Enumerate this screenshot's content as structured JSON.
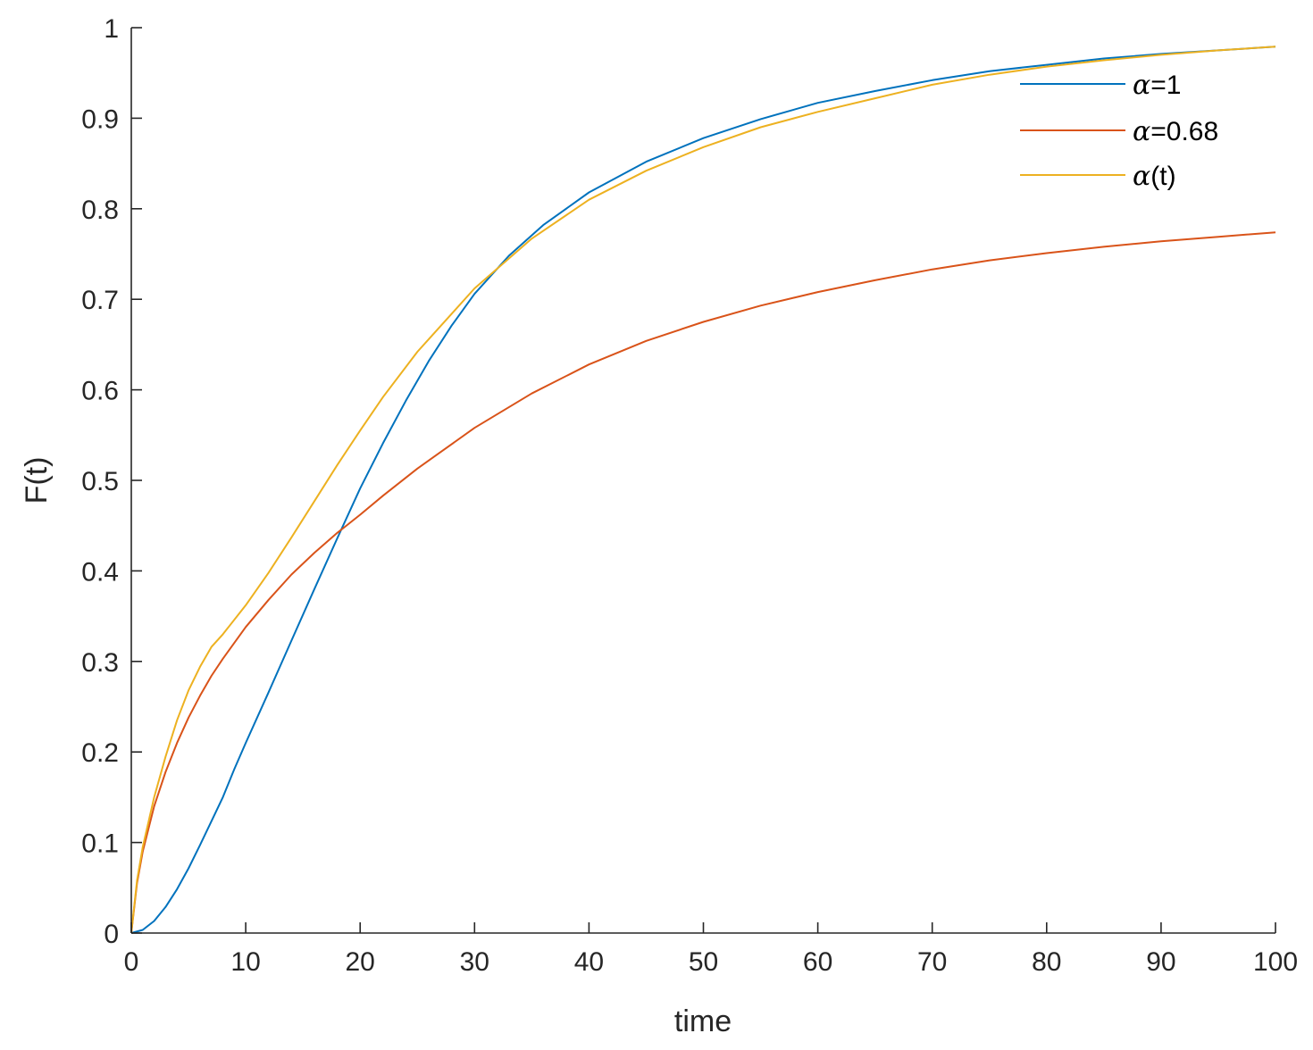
{
  "chart_data": {
    "type": "line",
    "xlabel": "time",
    "ylabel": "F(t)",
    "xlim": [
      0,
      100
    ],
    "ylim": [
      0,
      1
    ],
    "xticks": [
      0,
      10,
      20,
      30,
      40,
      50,
      60,
      70,
      80,
      90,
      100
    ],
    "yticks": [
      0,
      0.1,
      0.2,
      0.3,
      0.4,
      0.5,
      0.6,
      0.7,
      0.8,
      0.9,
      1
    ],
    "xtick_labels": [
      "0",
      "10",
      "20",
      "30",
      "40",
      "50",
      "60",
      "70",
      "80",
      "90",
      "100"
    ],
    "ytick_labels": [
      "0",
      "0.1",
      "0.2",
      "0.3",
      "0.4",
      "0.5",
      "0.6",
      "0.7",
      "0.8",
      "0.9",
      "1"
    ],
    "grid": false,
    "legend_position": "top-right",
    "series": [
      {
        "name": "α=1",
        "label_symbol": "α",
        "label_rest": "=1",
        "color": "#0072BD",
        "x": [
          0,
          1,
          2,
          3,
          4,
          5,
          6,
          7,
          8,
          9,
          10,
          12,
          14,
          16,
          18,
          20,
          22,
          24,
          26,
          28,
          30,
          33,
          36,
          40,
          45,
          50,
          55,
          60,
          65,
          70,
          75,
          80,
          85,
          90,
          95,
          100
        ],
        "y": [
          0,
          0.0035,
          0.0133,
          0.0288,
          0.0484,
          0.0715,
          0.097,
          0.1235,
          0.15,
          0.181,
          0.21,
          0.266,
          0.323,
          0.38,
          0.436,
          0.491,
          0.541,
          0.588,
          0.632,
          0.671,
          0.706,
          0.748,
          0.782,
          0.818,
          0.852,
          0.878,
          0.899,
          0.917,
          0.93,
          0.942,
          0.952,
          0.959,
          0.966,
          0.971,
          0.975,
          0.979
        ]
      },
      {
        "name": "α=0.68",
        "label_symbol": "α",
        "label_rest": "=0.68",
        "color": "#D95319",
        "x": [
          0,
          0.5,
          1,
          2,
          3,
          4,
          5,
          6,
          7,
          8,
          10,
          12,
          14,
          16,
          18,
          20,
          22,
          25,
          30,
          35,
          40,
          45,
          50,
          55,
          60,
          65,
          70,
          75,
          80,
          85,
          90,
          95,
          100
        ],
        "y": [
          0,
          0.055,
          0.09,
          0.14,
          0.178,
          0.21,
          0.238,
          0.262,
          0.284,
          0.303,
          0.338,
          0.368,
          0.396,
          0.42,
          0.442,
          0.462,
          0.483,
          0.513,
          0.558,
          0.596,
          0.628,
          0.654,
          0.675,
          0.693,
          0.708,
          0.721,
          0.733,
          0.743,
          0.751,
          0.758,
          0.764,
          0.769,
          0.774
        ]
      },
      {
        "name": "α(t)",
        "label_symbol": "α",
        "label_rest": "(t)",
        "color": "#EDB120",
        "x": [
          0,
          0.5,
          1,
          2,
          3,
          4,
          5,
          6,
          7,
          8,
          10,
          12,
          14,
          16,
          18,
          20,
          22,
          25,
          30,
          35,
          40,
          45,
          50,
          55,
          60,
          65,
          70,
          75,
          80,
          85,
          90,
          95,
          100
        ],
        "y": [
          0,
          0.058,
          0.095,
          0.15,
          0.195,
          0.235,
          0.268,
          0.294,
          0.316,
          0.33,
          0.362,
          0.398,
          0.437,
          0.477,
          0.517,
          0.555,
          0.592,
          0.642,
          0.712,
          0.767,
          0.81,
          0.842,
          0.868,
          0.89,
          0.907,
          0.922,
          0.937,
          0.948,
          0.957,
          0.964,
          0.97,
          0.975,
          0.979
        ]
      }
    ]
  }
}
